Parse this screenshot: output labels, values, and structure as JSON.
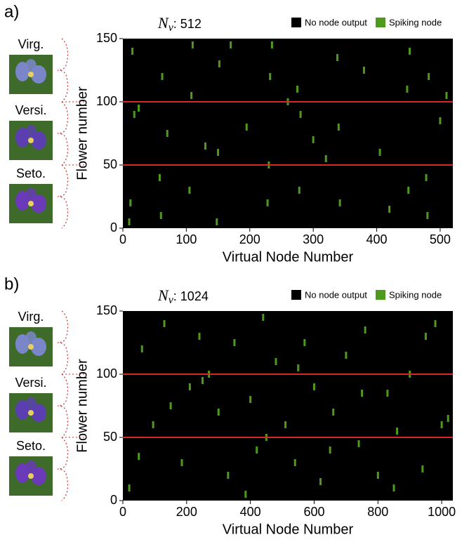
{
  "chart_data": [
    {
      "type": "scatter",
      "panel_label": "a)",
      "title_symbol": "N",
      "title_subscript": "v",
      "title_text": ": 512",
      "xlabel": "Virtual Node Number",
      "ylabel": "Flower number",
      "classes": [
        "Virg.",
        "Versi.",
        "Seto."
      ],
      "background": {
        "name": "No node output",
        "color": "#000000"
      },
      "xlim": [
        0,
        520
      ],
      "ylim": [
        0,
        150
      ],
      "xticks": [
        0,
        100,
        200,
        300,
        400,
        500
      ],
      "yticks": [
        0,
        50,
        100,
        150
      ],
      "hlines": {
        "values": [
          50,
          100
        ],
        "color": "#d62728"
      },
      "x": [
        10,
        12,
        15,
        18,
        58,
        60,
        62,
        105,
        108,
        110,
        148,
        150,
        152,
        195,
        228,
        230,
        232,
        235,
        275,
        278,
        280,
        300,
        338,
        340,
        342,
        405,
        448,
        450,
        452,
        478,
        480,
        482,
        500,
        25,
        70,
        130,
        170,
        260,
        320,
        380,
        420,
        510
      ],
      "series": [
        {
          "name": "Spiking node",
          "color": "#4e9a1c",
          "values": [
            5,
            20,
            140,
            90,
            40,
            10,
            120,
            30,
            105,
            145,
            5,
            60,
            130,
            80,
            20,
            50,
            120,
            145,
            110,
            30,
            90,
            70,
            135,
            80,
            20,
            60,
            110,
            30,
            140,
            40,
            10,
            120,
            85,
            95,
            75,
            65,
            145,
            100,
            55,
            125,
            15,
            105
          ]
        }
      ]
    },
    {
      "type": "scatter",
      "panel_label": "b)",
      "title_symbol": "N",
      "title_subscript": "v",
      "title_text": ": 1024",
      "xlabel": "Virtual Node Number",
      "ylabel": "Flower number",
      "classes": [
        "Virg.",
        "Versi.",
        "Seto."
      ],
      "background": {
        "name": "No node output",
        "color": "#000000"
      },
      "xlim": [
        0,
        1035
      ],
      "ylim": [
        0,
        150
      ],
      "xticks": [
        0,
        200,
        400,
        600,
        800,
        1000
      ],
      "yticks": [
        0,
        50,
        100,
        150
      ],
      "hlines": {
        "values": [
          50,
          100
        ],
        "color": "#d62728"
      },
      "x": [
        20,
        60,
        95,
        130,
        185,
        210,
        240,
        270,
        300,
        330,
        385,
        400,
        420,
        440,
        480,
        510,
        540,
        570,
        600,
        620,
        660,
        700,
        740,
        760,
        800,
        830,
        860,
        900,
        940,
        980,
        1020,
        50,
        150,
        250,
        350,
        450,
        550,
        650,
        750,
        850,
        950,
        1000
      ],
      "series": [
        {
          "name": "Spiking node",
          "color": "#4e9a1c",
          "values": [
            10,
            120,
            60,
            140,
            30,
            90,
            130,
            100,
            70,
            20,
            5,
            80,
            40,
            145,
            110,
            60,
            30,
            125,
            90,
            15,
            70,
            115,
            45,
            135,
            20,
            85,
            55,
            100,
            25,
            140,
            65,
            35,
            75,
            95,
            125,
            50,
            105,
            40,
            85,
            10,
            130,
            60
          ]
        }
      ]
    }
  ]
}
